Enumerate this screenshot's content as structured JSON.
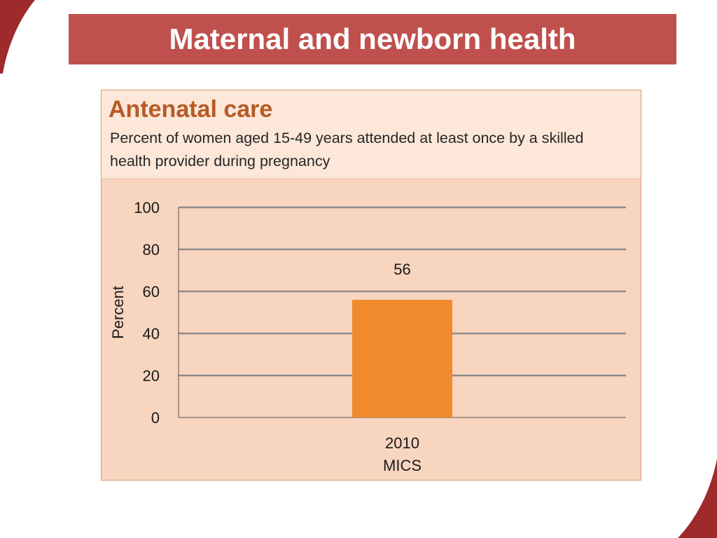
{
  "slide": {
    "title": "Maternal and newborn health"
  },
  "panel": {
    "title": "Antenatal care",
    "subtitle": "Percent of women aged 15-49 years attended at least once by a skilled health provider during pregnancy"
  },
  "colors": {
    "banner": "#c0504d",
    "panel_bg": "#f8d5bf",
    "panel_header_bg": "#fce7d9",
    "panel_title": "#b85a25",
    "bar": "#f08a2c",
    "gridline": "#8c8c8c",
    "decoration": "#9e2a2b"
  },
  "chart_data": {
    "type": "bar",
    "categories": [
      [
        "2010",
        "MICS"
      ]
    ],
    "values": [
      56
    ],
    "data_labels": [
      "56"
    ],
    "xlabel": "",
    "ylabel": "Percent",
    "ylim": [
      0,
      100
    ],
    "yticks": [
      0,
      20,
      40,
      60,
      80,
      100
    ],
    "grid": true,
    "legend": "none"
  }
}
